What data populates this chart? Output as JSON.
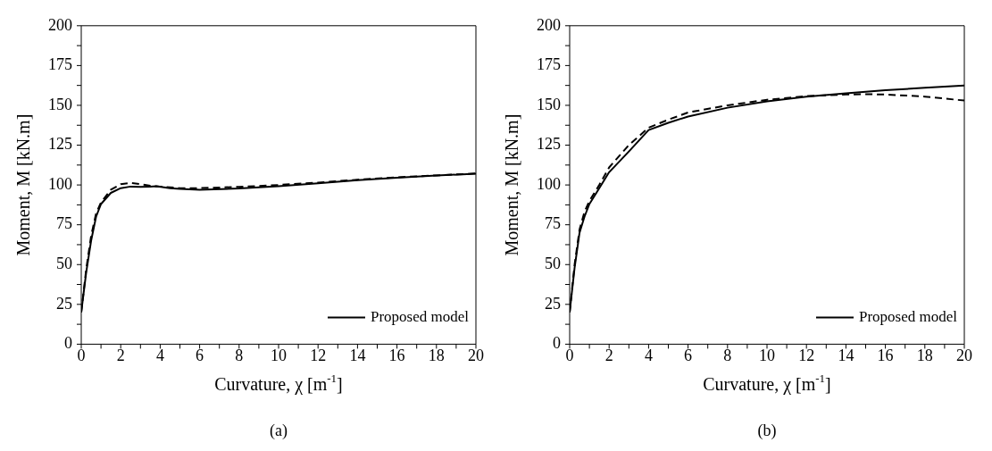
{
  "chart_data": [
    {
      "type": "line",
      "xlabel": "Curvature, χ [m$^{-1}$]",
      "ylabel": "Moment, M [kN.m]",
      "annotations": [
        "(a)"
      ],
      "xlim": [
        0,
        20
      ],
      "ylim": [
        0,
        200
      ],
      "xticks": [
        0,
        {
          "value": 1,
          "label": null
        },
        2,
        {
          "value": 3,
          "label": null
        },
        4,
        {
          "value": 5,
          "label": null
        },
        6,
        {
          "value": 7,
          "label": null
        },
        8,
        {
          "value": 9,
          "label": null
        },
        10,
        {
          "value": 11,
          "label": null
        },
        12,
        {
          "value": 13,
          "label": null
        },
        14,
        {
          "value": 15,
          "label": null
        },
        16,
        {
          "value": 17,
          "label": null
        },
        18,
        {
          "value": 19,
          "label": null
        },
        20
      ],
      "yticks": [
        0,
        {
          "value": 12.5,
          "label": null
        },
        25,
        {
          "value": 37.5,
          "label": null
        },
        50,
        {
          "value": 62.5,
          "label": null
        },
        75,
        {
          "value": 87.5,
          "label": null
        },
        100,
        {
          "value": 112.5,
          "label": null
        },
        125,
        {
          "value": 137.5,
          "label": null
        },
        150,
        {
          "value": 162.5,
          "label": null
        },
        175,
        {
          "value": 187.5,
          "label": null
        },
        200
      ],
      "grid": false,
      "legend": "bottom right",
      "marker": "none",
      "series": [
        {
          "name": "Proposed model",
          "color": "#000000",
          "line_style": "solid",
          "x": [
            0,
            0.25,
            0.5,
            0.75,
            1,
            1.5,
            2,
            2.5,
            3,
            3.5,
            3.8,
            4.5,
            5,
            6,
            8,
            10,
            12,
            14,
            16,
            18,
            20
          ],
          "values": [
            20,
            45,
            65,
            80,
            88,
            95,
            98,
            99,
            98.8,
            99,
            99.2,
            98,
            97.5,
            97,
            97.8,
            99.2,
            101,
            103,
            104.5,
            106,
            107
          ]
        },
        {
          "color": "#000000",
          "line_style": "dashed",
          "x": [
            0,
            0.25,
            0.5,
            0.75,
            1,
            1.5,
            2,
            2.5,
            3,
            3.5,
            4,
            5,
            6,
            8,
            10,
            12,
            14,
            16,
            18,
            20
          ],
          "values": [
            20,
            47,
            68,
            82,
            89,
            97,
            100.5,
            101.3,
            100.5,
            99.5,
            99,
            98,
            98,
            98.8,
            100,
            101.5,
            103.3,
            104.8,
            106,
            107.2
          ]
        }
      ]
    },
    {
      "type": "line",
      "xlabel": "Curvature, χ [m$^{-1}$]",
      "ylabel": "Moment, M [kN.m]",
      "annotations": [
        "(b)"
      ],
      "xlim": [
        0,
        20
      ],
      "ylim": [
        0,
        200
      ],
      "xticks": [
        0,
        {
          "value": 1,
          "label": null
        },
        2,
        {
          "value": 3,
          "label": null
        },
        4,
        {
          "value": 5,
          "label": null
        },
        6,
        {
          "value": 7,
          "label": null
        },
        8,
        {
          "value": 9,
          "label": null
        },
        10,
        {
          "value": 11,
          "label": null
        },
        12,
        {
          "value": 13,
          "label": null
        },
        14,
        {
          "value": 15,
          "label": null
        },
        16,
        {
          "value": 17,
          "label": null
        },
        18,
        {
          "value": 19,
          "label": null
        },
        20
      ],
      "yticks": [
        0,
        {
          "value": 12.5,
          "label": null
        },
        25,
        {
          "value": 37.5,
          "label": null
        },
        50,
        {
          "value": 62.5,
          "label": null
        },
        75,
        {
          "value": 87.5,
          "label": null
        },
        100,
        {
          "value": 112.5,
          "label": null
        },
        125,
        {
          "value": 137.5,
          "label": null
        },
        150,
        {
          "value": 162.5,
          "label": null
        },
        175,
        {
          "value": 187.5,
          "label": null
        },
        200
      ],
      "grid": false,
      "legend": "bottom right",
      "marker": "none",
      "series": [
        {
          "name": "Proposed model",
          "color": "#000000",
          "line_style": "solid",
          "x": [
            0,
            0.25,
            0.5,
            0.75,
            1,
            1.5,
            2,
            3,
            4,
            5,
            6,
            8,
            10,
            12,
            14,
            16,
            18,
            20
          ],
          "values": [
            20,
            48,
            70,
            80,
            88,
            98,
            108,
            121,
            134.5,
            139,
            143,
            148.5,
            152.5,
            155.5,
            157.5,
            159.5,
            161,
            162.5
          ]
        },
        {
          "color": "#000000",
          "line_style": "dashed",
          "x": [
            0,
            0.25,
            0.5,
            0.75,
            1,
            1.5,
            2,
            3,
            4,
            5,
            6,
            8,
            10,
            12,
            14,
            15,
            16,
            18,
            20
          ],
          "values": [
            20,
            50,
            72,
            83,
            90,
            100,
            111,
            125,
            136,
            141,
            145.5,
            150,
            153.5,
            155.8,
            156.8,
            157,
            156.8,
            155.5,
            153
          ]
        }
      ]
    }
  ]
}
